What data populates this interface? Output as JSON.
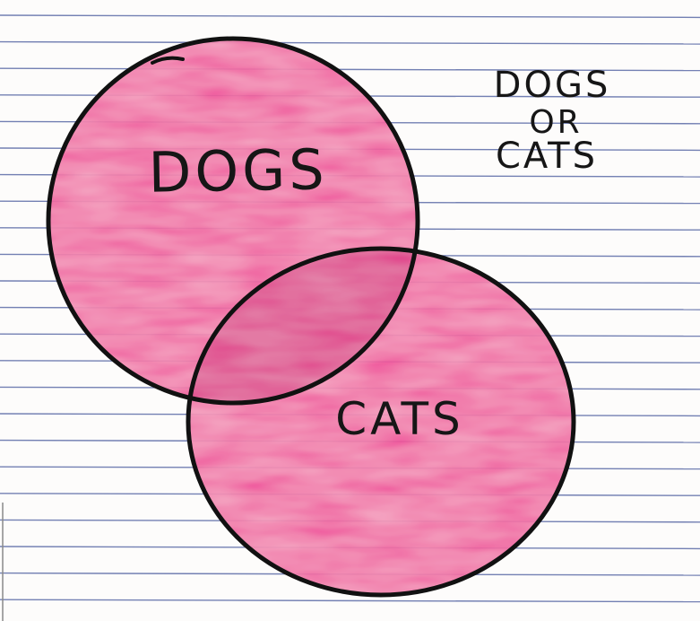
{
  "diagram": {
    "type": "venn",
    "paper_line_color": "#5b6aa6",
    "circle_fill_color": "#ee3f93",
    "outline_color": "#111111",
    "sets": [
      {
        "id": "dogs",
        "label": "DOGS"
      },
      {
        "id": "cats",
        "label": "CATS"
      }
    ],
    "title_lines": [
      "DOGS",
      "OR",
      "CATS"
    ]
  }
}
